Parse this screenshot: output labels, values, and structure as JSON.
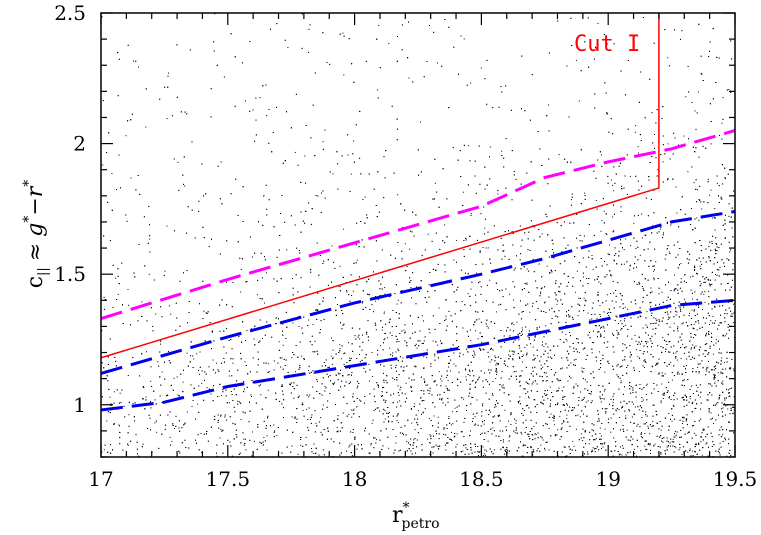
{
  "chart_data": {
    "type": "scatter",
    "title": "",
    "xlabel": {
      "base": "r",
      "sup": "*",
      "sub": "petro"
    },
    "ylabel": {
      "c_part": "c",
      "c_sub": "||",
      "approx": "≈",
      "g": "g",
      "g_sup": "*",
      "minus": "−",
      "r": "r",
      "r_sup": "*"
    },
    "xlim": [
      17,
      19.5
    ],
    "ylim": [
      0.8,
      2.5
    ],
    "xticks": [
      "17",
      "17.5",
      "18",
      "18.5",
      "19",
      "19.5"
    ],
    "yticks": [
      "1",
      "1.5",
      "2",
      "2.5"
    ],
    "grid": false,
    "annotation": {
      "text": "Cut I",
      "color": "#ff0000"
    },
    "colors": {
      "cut": "#ff0000",
      "magenta": "#ff00ff",
      "blue": "#0000ee",
      "points": "#000000"
    },
    "series": [
      {
        "style": "solid",
        "color": "#ff0000",
        "x": [
          17.0,
          19.2,
          19.2
        ],
        "y": [
          1.18,
          1.83,
          2.5
        ]
      },
      {
        "style": "dashed",
        "color": "#ff00ff",
        "x": [
          17.0,
          17.5,
          18.0,
          18.5,
          18.75,
          19.0,
          19.25,
          19.5
        ],
        "y": [
          1.33,
          1.48,
          1.62,
          1.76,
          1.87,
          1.93,
          1.98,
          2.05
        ]
      },
      {
        "style": "dashed",
        "color": "#0000ee",
        "x": [
          17.0,
          17.5,
          18.0,
          18.5,
          18.75,
          19.0,
          19.25,
          19.5
        ],
        "y": [
          1.12,
          1.26,
          1.39,
          1.5,
          1.56,
          1.63,
          1.7,
          1.74
        ]
      },
      {
        "style": "dashed",
        "color": "#0000ee",
        "x": [
          17.0,
          17.25,
          17.5,
          18.0,
          18.5,
          18.75,
          19.0,
          19.25,
          19.5
        ],
        "y": [
          0.98,
          1.01,
          1.07,
          1.15,
          1.23,
          1.28,
          1.33,
          1.38,
          1.4
        ]
      }
    ],
    "scatter_density": {
      "x_range": [
        17,
        19.5
      ],
      "y_range": [
        0.8,
        2.5
      ],
      "points_per_unit": 900,
      "color": "#000000"
    }
  }
}
